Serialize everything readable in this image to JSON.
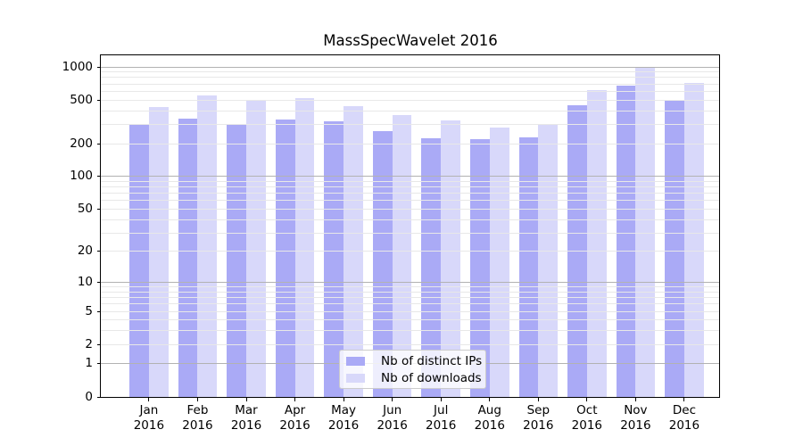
{
  "chart_data": {
    "type": "bar",
    "title": "MassSpecWavelet 2016",
    "categories": [
      "Jan 2016",
      "Feb 2016",
      "Mar 2016",
      "Apr 2016",
      "May 2016",
      "Jun 2016",
      "Jul 2016",
      "Aug 2016",
      "Sep 2016",
      "Oct 2016",
      "Nov 2016",
      "Dec 2016"
    ],
    "x_tick_month_labels": [
      "Jan",
      "Feb",
      "Mar",
      "Apr",
      "May",
      "Jun",
      "Jul",
      "Aug",
      "Sep",
      "Oct",
      "Nov",
      "Dec"
    ],
    "x_tick_year_label": "2016",
    "series": [
      {
        "name": "Nb of distinct IPs",
        "color": "#aaaaf6",
        "values": [
          295,
          340,
          305,
          335,
          320,
          260,
          225,
          220,
          230,
          450,
          680,
          495
        ]
      },
      {
        "name": "Nb of downloads",
        "color": "#d8d8fa",
        "values": [
          430,
          550,
          495,
          525,
          440,
          365,
          325,
          280,
          300,
          615,
          1000,
          710
        ]
      }
    ],
    "xlabel": "",
    "ylabel": "",
    "y_axis": {
      "scale": "log10(1+x)",
      "ticks": [
        1000,
        500,
        200,
        100,
        50,
        20,
        10,
        5,
        2,
        1,
        0
      ],
      "ylim": [
        0,
        1270
      ],
      "grid": true,
      "major_gridlines": [
        1,
        10,
        100,
        1000
      ],
      "minor_gridline_decades": [
        1,
        10,
        100
      ],
      "minor_gridline_multipliers": [
        2,
        3,
        4,
        5,
        6,
        7,
        8,
        9
      ]
    },
    "legend": {
      "position": "lower center",
      "entries": [
        "Nb of distinct IPs",
        "Nb of downloads"
      ]
    }
  },
  "colors": {
    "background": "#ffffff",
    "bar_distinct_ips": "#aaaaf6",
    "bar_downloads": "#d8d8fa",
    "grid_major": "#b2b2b2",
    "grid_minor": "#e8e8e8",
    "axis": "#000000",
    "text": "#000000",
    "legend_border": "#cccccc"
  }
}
